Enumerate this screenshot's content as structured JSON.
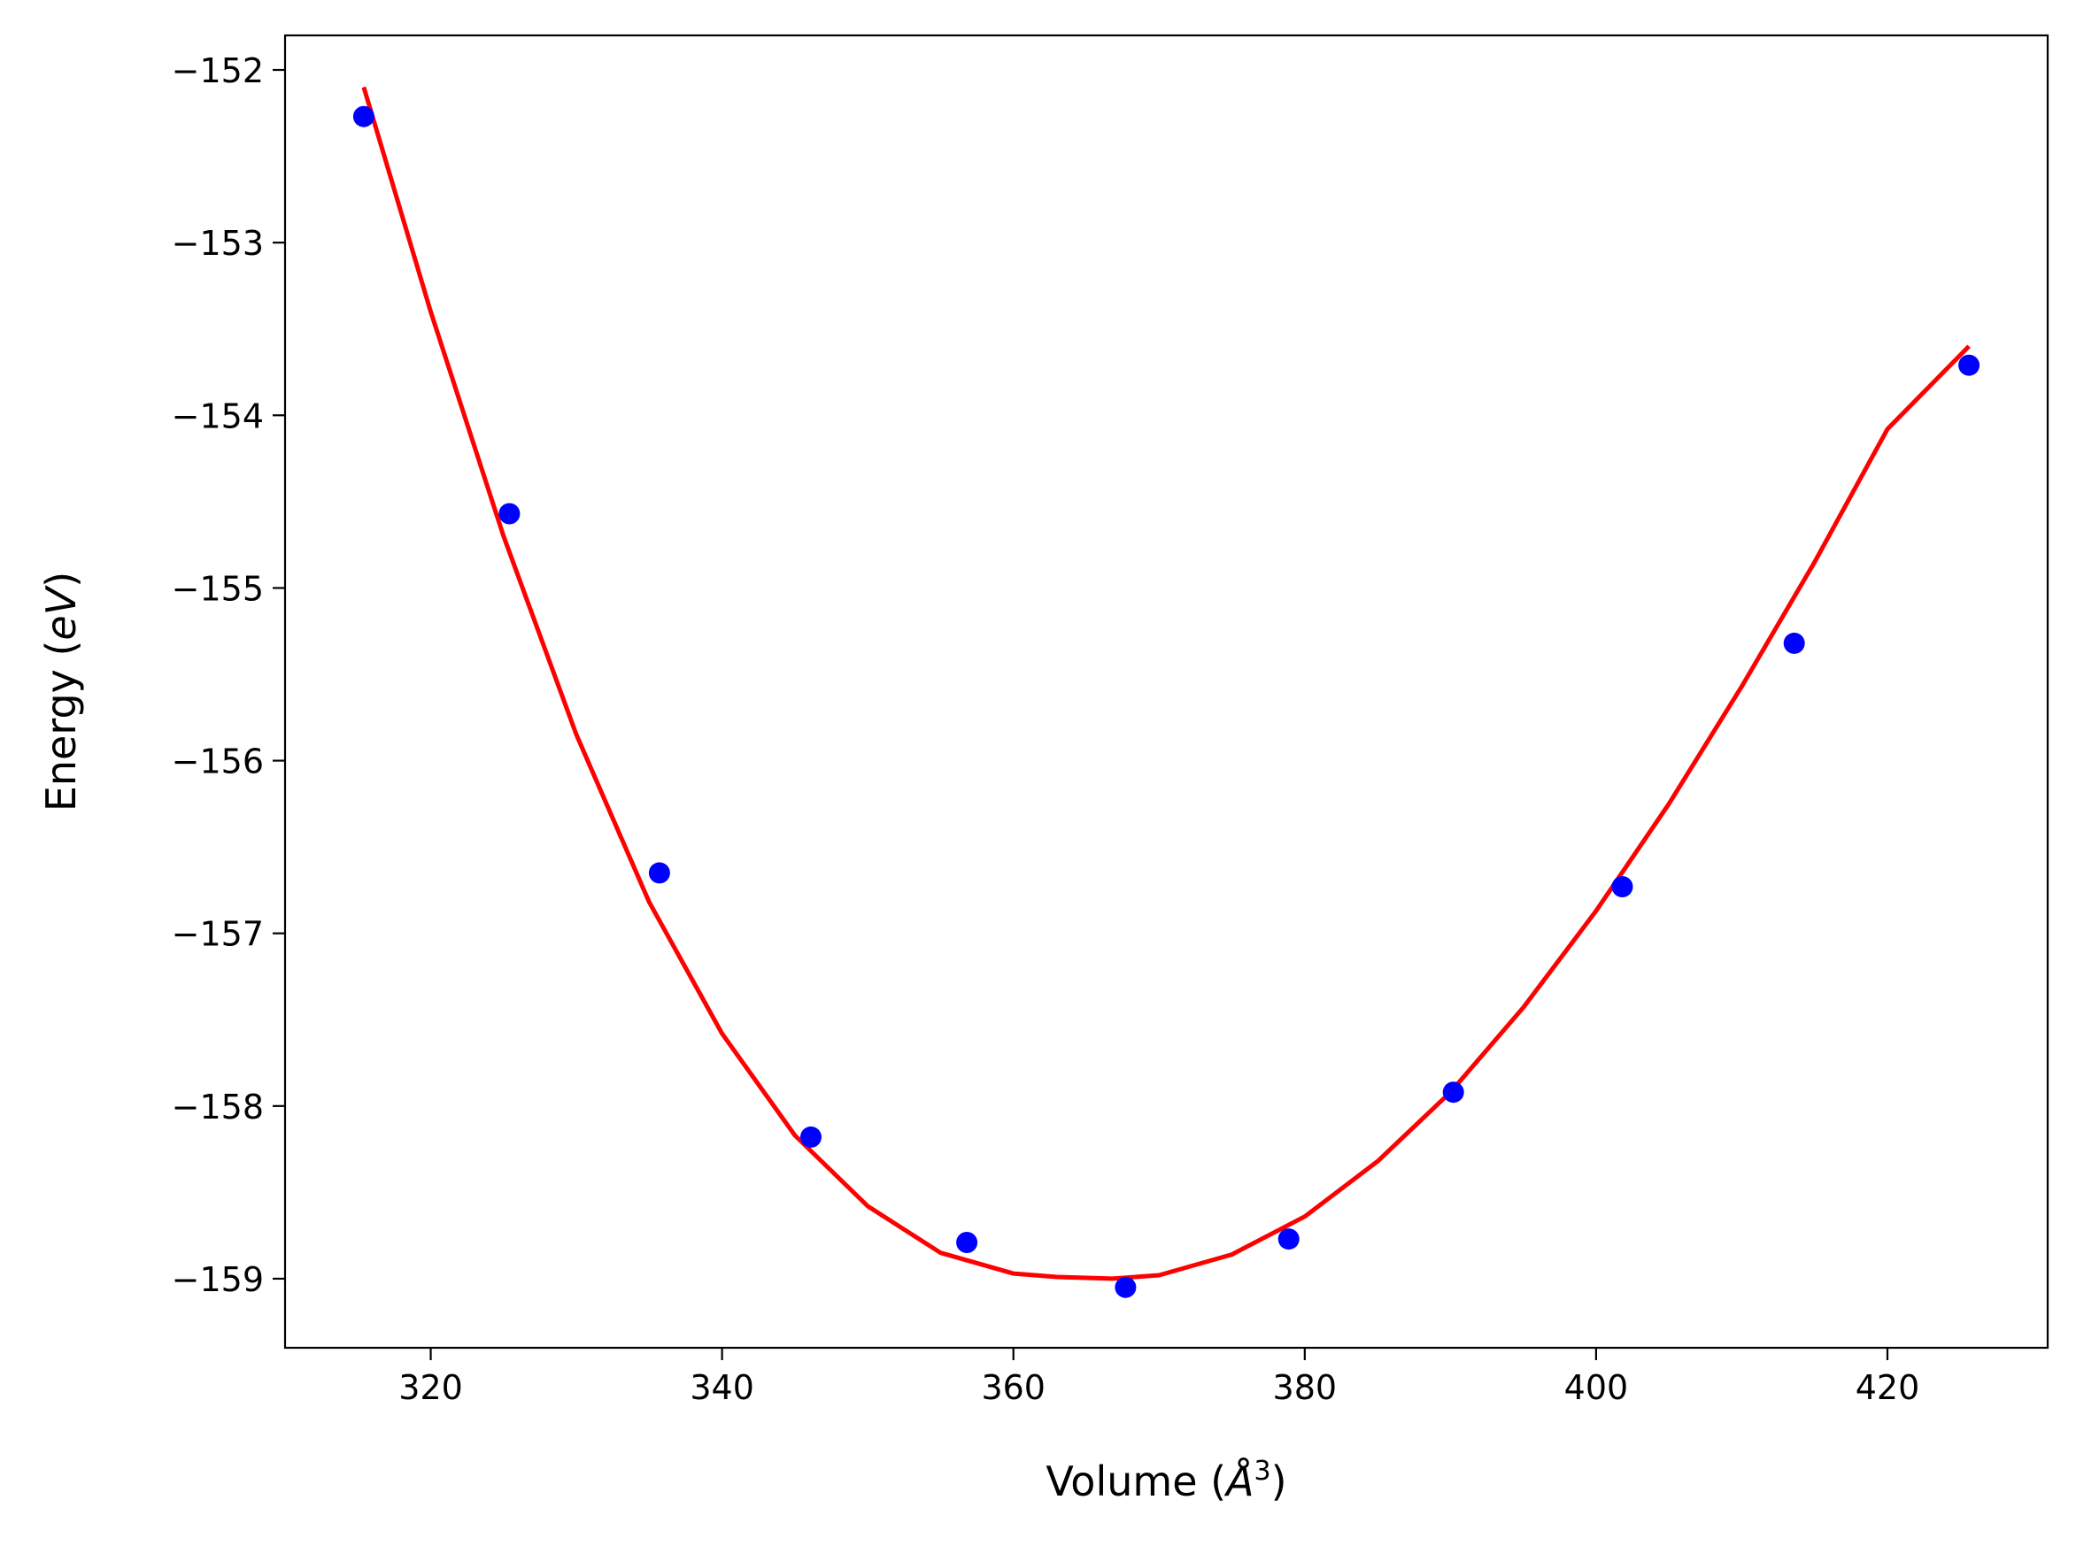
{
  "chart_data": {
    "type": "scatter",
    "title": "",
    "xlabel": "Volume (",
    "xlabel_unit_symbol": "Å",
    "xlabel_unit_power": "3",
    "xlabel_close": ")",
    "ylabel": "Energy (",
    "ylabel_unit": "eV",
    "ylabel_close": ")",
    "xlim": [
      310,
      431
    ],
    "ylim": [
      -159.4,
      -151.8
    ],
    "xticks": [
      320,
      340,
      360,
      380,
      400,
      420
    ],
    "xtick_labels": [
      "320",
      "340",
      "360",
      "380",
      "400",
      "420"
    ],
    "yticks": [
      -152,
      -153,
      -154,
      -155,
      -156,
      -157,
      -158,
      -159
    ],
    "ytick_labels": [
      "−152",
      "−153",
      "−154",
      "−155",
      "−156",
      "−157",
      "−158",
      "−159"
    ],
    "grid": false,
    "series": [
      {
        "kind": "points",
        "color": "#0000ff",
        "x": [
          315.4,
          325.4,
          335.7,
          346.1,
          356.8,
          367.7,
          378.9,
          390.2,
          401.8,
          413.6,
          425.6
        ],
        "y": [
          -152.27,
          -154.57,
          -156.65,
          -158.18,
          -158.79,
          -159.05,
          -158.77,
          -157.92,
          -156.73,
          -155.32,
          -153.71
        ]
      },
      {
        "kind": "fit-curve",
        "color": "#ff0000",
        "x": [
          315.4,
          320,
          325,
          330,
          335,
          340,
          345,
          350,
          355,
          360,
          363,
          366.8,
          370,
          375,
          380,
          385,
          390,
          395,
          400,
          405,
          410,
          415,
          420,
          425.6
        ],
        "y": [
          -152.1,
          -153.4,
          -154.7,
          -155.85,
          -156.82,
          -157.58,
          -158.17,
          -158.58,
          -158.85,
          -158.97,
          -158.99,
          -159.0,
          -158.98,
          -158.86,
          -158.64,
          -158.32,
          -157.92,
          -157.43,
          -156.87,
          -156.25,
          -155.57,
          -154.85,
          -154.08,
          -153.6
        ]
      }
    ]
  }
}
